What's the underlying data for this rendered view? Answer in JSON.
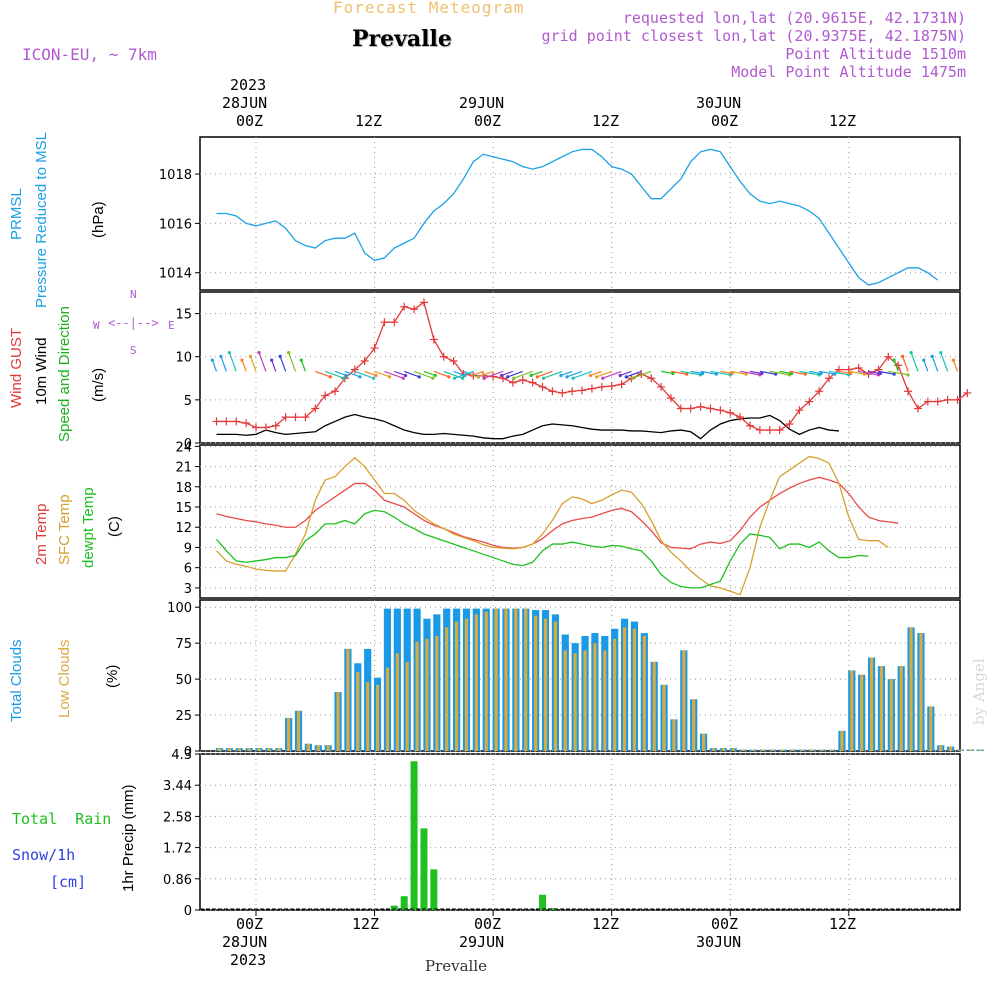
{
  "header": {
    "forecast_label": "Forecast Meteogram",
    "model": "ICON-EU, ~ 7km",
    "location": "Prevalle",
    "requested": "requested lon,lat (20.9615E, 42.1731N)",
    "gridpoint": "grid point closest lon,lat (20.9375E, 42.1875N)",
    "point_alt": "Point Altitude 1510m",
    "model_alt": "Model Point Altitude 1475m",
    "watermark": "by Angel",
    "footer": "Prevalle"
  },
  "time_axis": {
    "ticks": [
      "00Z",
      "12Z",
      "00Z",
      "12Z",
      "00Z",
      "12Z"
    ],
    "dates": [
      "28JUN",
      "29JUN",
      "30JUN"
    ],
    "year": "2023"
  },
  "colors": {
    "pressure": "#1ca0e6",
    "gust": "#e23a3a",
    "wind": "#000000",
    "temp": "#e84a4a",
    "sfc_temp": "#d8a030",
    "dewpt": "#20c020",
    "total_clouds": "#1a9ae6",
    "low_clouds": "#d8aa40",
    "rain": "#20c020",
    "purple": "#b05ad0",
    "snow": "#3040e0"
  },
  "panels": {
    "pressure": {
      "label1": "PRMSL",
      "label2": "Pressure Reduced to MSL",
      "unit": "(hPa)",
      "ticks": [
        "1018",
        "1016",
        "1014"
      ]
    },
    "wind": {
      "label_gust": "Wind GUST",
      "label_wind": "10m Wind",
      "label_dir": "Speed and Direction",
      "unit": "(m/s)",
      "ticks": [
        "15",
        "10",
        "5",
        "0"
      ],
      "compass_n": "N",
      "compass_s": "S",
      "compass_w": "W",
      "compass_e": "E"
    },
    "temp": {
      "label_t": "2m Temp",
      "label_sfc": "SFC Temp",
      "label_dew": "dewpt Temp",
      "unit": "(C)",
      "ticks": [
        "24",
        "21",
        "18",
        "15",
        "12",
        "9",
        "6",
        "3"
      ]
    },
    "clouds": {
      "label_total": "Total Clouds",
      "label_low": "Low Clouds",
      "unit": "(%)",
      "ticks": [
        "100",
        "75",
        "50",
        "25",
        "0"
      ]
    },
    "precip": {
      "label_rain": "Total  Rain",
      "label_snow": "Snow/1h",
      "label_snow_unit": "[cm]",
      "axis_label": "1hr Precip (mm)",
      "ticks": [
        "4.3",
        "3.44",
        "2.58",
        "1.72",
        "0.86",
        "0"
      ]
    }
  },
  "chart_data": {
    "type": "line",
    "time_step_hours": 1,
    "start_hour_offset": -4,
    "pressure_hPa": [
      1016.4,
      1016.4,
      1016.3,
      1016.0,
      1015.9,
      1016.0,
      1016.1,
      1015.8,
      1015.3,
      1015.1,
      1015.0,
      1015.3,
      1015.4,
      1015.4,
      1015.6,
      1014.8,
      1014.5,
      1014.6,
      1015.0,
      1015.2,
      1015.4,
      1016.0,
      1016.5,
      1016.8,
      1017.2,
      1017.8,
      1018.5,
      1018.8,
      1018.7,
      1018.6,
      1018.5,
      1018.3,
      1018.2,
      1018.3,
      1018.5,
      1018.7,
      1018.9,
      1019.0,
      1019.0,
      1018.7,
      1018.3,
      1018.2,
      1018.0,
      1017.5,
      1017.0,
      1017.0,
      1017.4,
      1017.8,
      1018.5,
      1018.9,
      1019.0,
      1018.9,
      1018.3,
      1017.7,
      1017.2,
      1016.9,
      1016.8,
      1016.9,
      1016.8,
      1016.7,
      1016.5,
      1016.2,
      1015.6,
      1015.0,
      1014.4,
      1013.8,
      1013.5,
      1013.6,
      1013.8,
      1014.0,
      1014.2,
      1014.2,
      1014.0,
      1013.7
    ],
    "gust_ms": [
      2.5,
      2.5,
      2.5,
      2.3,
      1.8,
      1.8,
      2.0,
      3.0,
      3.0,
      3.0,
      4.0,
      5.5,
      6.0,
      7.5,
      8.5,
      9.5,
      11.0,
      14.0,
      14.0,
      15.8,
      15.5,
      16.3,
      12.0,
      10.0,
      9.5,
      8.0,
      7.8,
      7.8,
      7.7,
      7.5,
      7.0,
      7.3,
      7.0,
      6.5,
      6.0,
      5.8,
      6.0,
      6.1,
      6.3,
      6.5,
      6.6,
      6.8,
      7.5,
      8.0,
      7.5,
      6.5,
      5.2,
      4.0,
      4.0,
      4.2,
      4.0,
      3.8,
      3.5,
      3.0,
      2.0,
      1.5,
      1.5,
      1.5,
      2.2,
      3.8,
      4.8,
      6.0,
      7.5,
      8.5,
      8.5,
      8.7,
      8.0,
      8.5,
      10.0,
      9.0,
      6.0,
      4.0,
      4.8,
      4.8,
      5.0,
      5.0,
      5.8
    ],
    "wind_ms": [
      1.0,
      1.0,
      1.0,
      0.9,
      1.0,
      1.5,
      1.2,
      1.0,
      1.1,
      1.2,
      1.3,
      2.0,
      2.5,
      3.0,
      3.3,
      3.0,
      2.8,
      2.5,
      2.0,
      1.5,
      1.2,
      1.0,
      1.0,
      1.1,
      1.0,
      0.9,
      0.8,
      0.6,
      0.5,
      0.5,
      0.8,
      1.0,
      1.5,
      2.0,
      2.2,
      2.1,
      2.0,
      1.8,
      1.6,
      1.5,
      1.5,
      1.5,
      1.4,
      1.4,
      1.3,
      1.2,
      1.4,
      1.5,
      1.3,
      0.5,
      1.5,
      2.2,
      2.6,
      2.8,
      2.9,
      2.9,
      3.2,
      2.6,
      1.6,
      1.0,
      1.5,
      1.8,
      1.5,
      1.4
    ],
    "temp2m_C": [
      14.0,
      13.6,
      13.3,
      13.0,
      12.8,
      12.5,
      12.3,
      12.0,
      12.0,
      13.0,
      14.5,
      15.5,
      16.5,
      17.5,
      18.5,
      18.5,
      17.5,
      16.0,
      15.5,
      15.0,
      14.0,
      13.0,
      12.3,
      11.8,
      11.2,
      10.6,
      10.2,
      9.8,
      9.3,
      9.0,
      8.9,
      9.0,
      9.5,
      10.3,
      11.5,
      12.5,
      13.0,
      13.3,
      13.5,
      14.0,
      14.5,
      14.8,
      14.3,
      13.0,
      11.5,
      9.7,
      9.0,
      8.9,
      8.8,
      9.5,
      9.8,
      9.6,
      10.0,
      11.5,
      13.5,
      15.0,
      16.0,
      17.0,
      17.8,
      18.5,
      19.0,
      19.4,
      19.0,
      18.5,
      17.0,
      15.0,
      13.5,
      13.0,
      12.8,
      12.6
    ],
    "sfc_temp_C": [
      8.5,
      7.0,
      6.5,
      6.2,
      5.8,
      5.6,
      5.5,
      5.5,
      8.0,
      11.0,
      16.0,
      19.0,
      19.5,
      21.0,
      22.3,
      21.0,
      19.0,
      17.0,
      17.0,
      16.0,
      14.5,
      13.5,
      12.5,
      11.8,
      11.0,
      10.5,
      10.0,
      9.4,
      9.0,
      8.9,
      8.8,
      9.0,
      9.5,
      11.0,
      13.0,
      15.5,
      16.5,
      16.2,
      15.5,
      16.0,
      16.8,
      17.5,
      17.2,
      15.5,
      13.0,
      10.0,
      8.3,
      7.0,
      5.5,
      4.3,
      3.3,
      3.0,
      2.5,
      2.0,
      6.0,
      12.0,
      16.0,
      19.5,
      20.5,
      21.5,
      22.5,
      22.2,
      21.5,
      18.5,
      13.5,
      10.2,
      10.0,
      10.0,
      9.0
    ],
    "dewpt_C": [
      10.2,
      8.5,
      7.0,
      6.8,
      7.0,
      7.2,
      7.5,
      7.5,
      7.8,
      10.0,
      11.0,
      12.5,
      12.5,
      13.0,
      12.5,
      14.0,
      14.5,
      14.3,
      13.5,
      12.5,
      11.8,
      11.0,
      10.5,
      10.0,
      9.5,
      9.0,
      8.5,
      8.0,
      7.5,
      7.0,
      6.5,
      6.3,
      6.8,
      8.5,
      9.5,
      9.5,
      9.8,
      9.5,
      9.2,
      9.0,
      9.3,
      9.2,
      8.8,
      8.5,
      7.0,
      5.0,
      3.8,
      3.2,
      3.0,
      3.0,
      3.5,
      4.0,
      7.0,
      9.5,
      11.0,
      10.8,
      10.5,
      8.8,
      9.5,
      9.5,
      9.0,
      9.8,
      8.5,
      7.5,
      7.5,
      7.8,
      7.7
    ],
    "total_clouds_pct": [
      2,
      2,
      2,
      2,
      2,
      2,
      2,
      23,
      28,
      5,
      4,
      4,
      41,
      71,
      61,
      71,
      51,
      99,
      99,
      99,
      99,
      92,
      95,
      99,
      99,
      99,
      99,
      99,
      99,
      99,
      99,
      99,
      98,
      98,
      95,
      81,
      75,
      80,
      82,
      80,
      85,
      92,
      90,
      82,
      62,
      46,
      22,
      70,
      36,
      12,
      2,
      2,
      2,
      1,
      1,
      1,
      1,
      1,
      1,
      1,
      1,
      1,
      1,
      14,
      56,
      53,
      65,
      59,
      50,
      59,
      86,
      82,
      31,
      4,
      3,
      1,
      1,
      1
    ],
    "low_clouds_pct": [
      2,
      2,
      2,
      2,
      2,
      2,
      2,
      23,
      28,
      5,
      4,
      4,
      41,
      71,
      55,
      48,
      46,
      58,
      68,
      62,
      76,
      78,
      80,
      86,
      90,
      92,
      95,
      97,
      99,
      99,
      99,
      99,
      94,
      92,
      90,
      70,
      68,
      70,
      75,
      70,
      78,
      86,
      85,
      80,
      62,
      46,
      22,
      70,
      36,
      12,
      2,
      2,
      2,
      1,
      1,
      1,
      1,
      1,
      1,
      1,
      1,
      1,
      1,
      14,
      56,
      53,
      65,
      59,
      50,
      59,
      86,
      82,
      31,
      4,
      3,
      1,
      1,
      1
    ],
    "precip_mm": [
      {
        "h": 14,
        "v": 0.12
      },
      {
        "h": 15,
        "v": 0.38
      },
      {
        "h": 16,
        "v": 4.1
      },
      {
        "h": 17,
        "v": 2.25
      },
      {
        "h": 18,
        "v": 1.12
      },
      {
        "h": 29,
        "v": 0.42
      },
      {
        "h": 30,
        "v": 0.05
      }
    ]
  }
}
